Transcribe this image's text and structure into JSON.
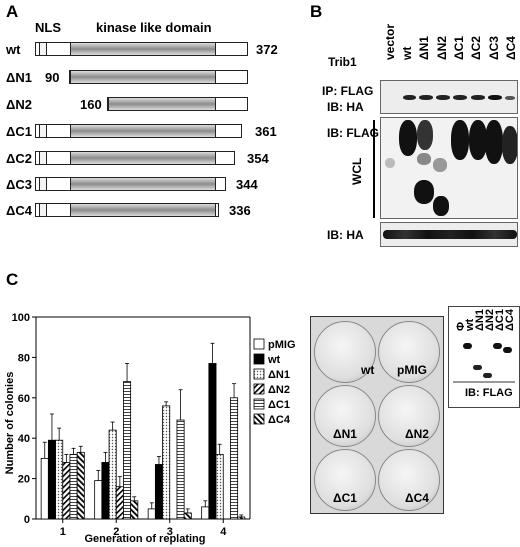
{
  "panel_a": {
    "letter": "A",
    "nls_label": "NLS",
    "domain_label": "kinase like domain",
    "constructs": [
      {
        "name": "wt",
        "start": "",
        "end": "372"
      },
      {
        "name": "ΔN1",
        "start": "90",
        "end": ""
      },
      {
        "name": "ΔN2",
        "start": "160",
        "end": ""
      },
      {
        "name": "ΔC1",
        "start": "",
        "end": "361"
      },
      {
        "name": "ΔC2",
        "start": "",
        "end": "354"
      },
      {
        "name": "ΔC3",
        "start": "",
        "end": "344"
      },
      {
        "name": "ΔC4",
        "start": "",
        "end": "336"
      }
    ]
  },
  "panel_b": {
    "letter": "B",
    "row_label": "Trib1",
    "lanes": [
      "vector",
      "wt",
      "ΔN1",
      "ΔN2",
      "ΔC1",
      "ΔC2",
      "ΔC3",
      "ΔC4"
    ],
    "ip_label": "IP: FLAG",
    "ib_ha_label": "IB: HA",
    "ib_flag_label": "IB: FLAG",
    "wcl_label": "WCL",
    "ib_ha_bottom_label": "IB: HA"
  },
  "panel_c": {
    "letter": "C",
    "plates": [
      "wt",
      "pMIG",
      "ΔN1",
      "ΔN2",
      "ΔC1",
      "ΔC4"
    ],
    "inset": {
      "lanes": [
        "Φ",
        "wt",
        "ΔN1",
        "ΔN2",
        "ΔC1",
        "ΔC4"
      ],
      "label": "IB: FLAG"
    }
  },
  "chart_data": {
    "type": "bar",
    "ylabel": "Number of colonies",
    "xlabel": "Generation of replating",
    "ylim": [
      0,
      100
    ],
    "yticks": [
      0,
      20,
      40,
      60,
      80,
      100
    ],
    "categories": [
      "1",
      "2",
      "3",
      "4"
    ],
    "series": [
      {
        "name": "pMIG",
        "pattern": "white",
        "values": [
          30,
          19,
          5,
          6
        ],
        "errors": [
          8,
          5,
          3,
          3
        ]
      },
      {
        "name": "wt",
        "pattern": "black",
        "values": [
          39,
          28,
          27,
          77
        ],
        "errors": [
          13,
          5,
          4,
          10
        ]
      },
      {
        "name": "ΔN1",
        "pattern": "dots",
        "values": [
          39,
          44,
          56,
          32
        ],
        "errors": [
          6,
          4,
          2,
          5
        ]
      },
      {
        "name": "ΔN2",
        "pattern": "diagonal",
        "values": [
          28,
          16,
          0,
          0
        ],
        "errors": [
          4,
          5,
          0,
          0
        ]
      },
      {
        "name": "ΔC1",
        "pattern": "horizontal",
        "values": [
          32,
          68,
          49,
          60
        ],
        "errors": [
          3,
          9,
          15,
          7
        ]
      },
      {
        "name": "ΔC4",
        "pattern": "reverse-diagonal",
        "values": [
          33,
          9,
          3,
          1
        ],
        "errors": [
          3,
          2,
          2,
          1
        ]
      }
    ]
  }
}
